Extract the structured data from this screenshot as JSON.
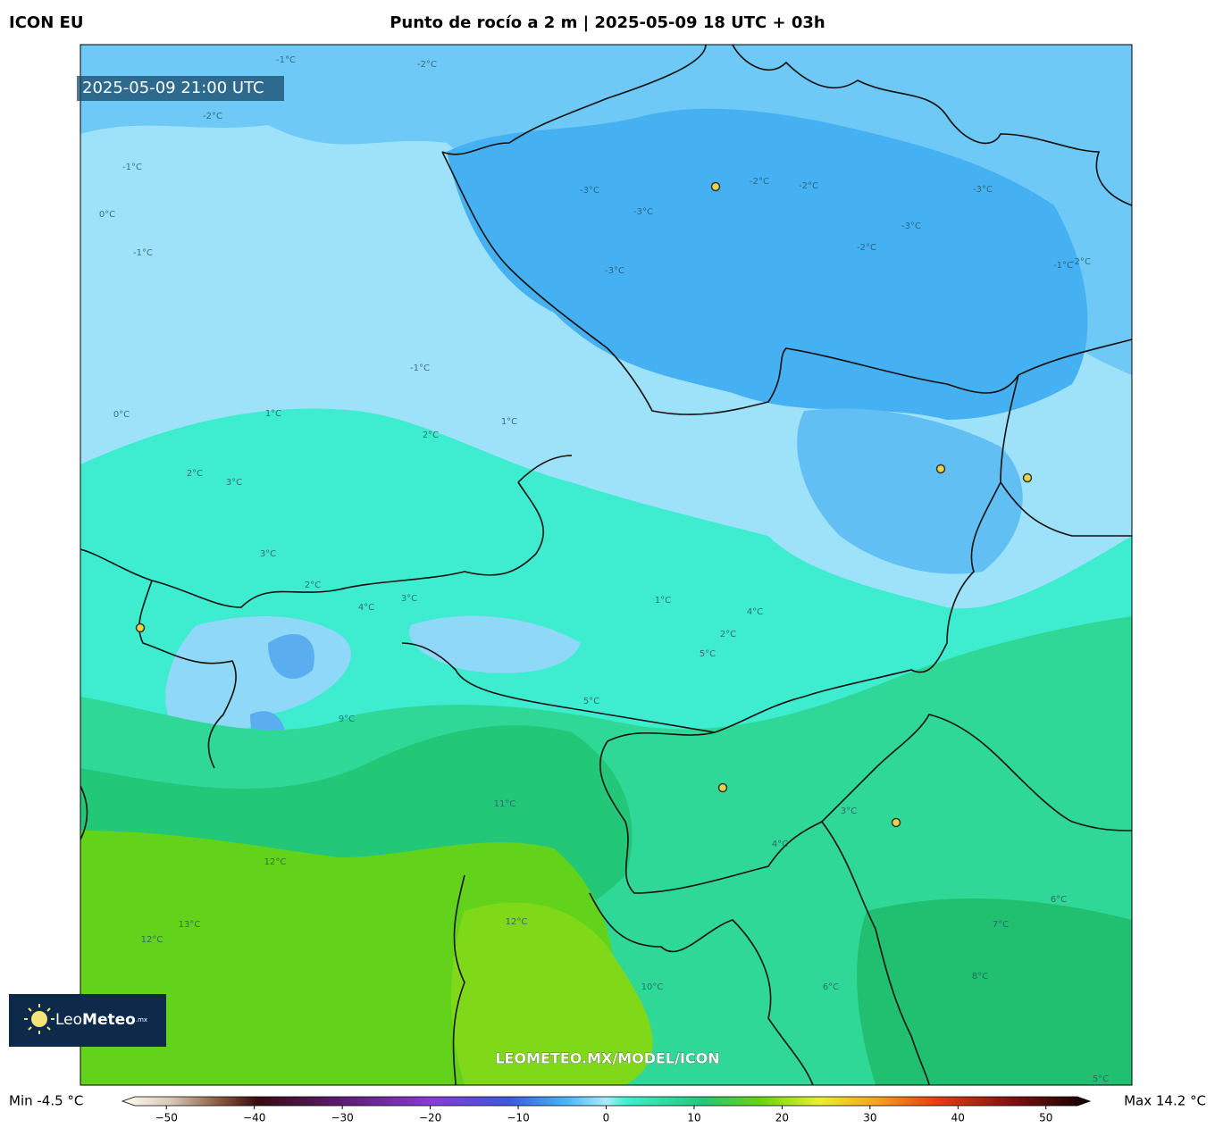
{
  "header": {
    "model": "ICON EU",
    "title": "Punto de rocío a 2 m | 2025-05-09 18 UTC + 03h"
  },
  "map": {
    "valid_time": "2025-05-09 21:00 UTC",
    "watermark": "LEOMETEO.MX/MODEL/ICON",
    "contour_labels": [
      "-1°C",
      "-2°C",
      "-1°C",
      "-2°C",
      "-3°C",
      "-2°C",
      "-2°C",
      "-3°C",
      "-3°C",
      "-1°C",
      "0°C",
      "-1°C",
      "-1°C",
      "-2°C",
      "-3°C",
      "-3°C",
      "-2°C",
      "1°C",
      "1°C",
      "0°C",
      "2°C",
      "2°C",
      "3°C",
      "3°C",
      "2°C",
      "3°C",
      "4°C",
      "1°C",
      "5°C",
      "5°C",
      "4°C",
      "2°C",
      "3°C",
      "4°C",
      "9°C",
      "11°C",
      "12°C",
      "13°C",
      "12°C",
      "12°C",
      "10°C",
      "6°C",
      "7°C",
      "8°C",
      "6°C",
      "5°C"
    ]
  },
  "logo": {
    "name_light": "Leo",
    "name_bold": "Meteo",
    "suffix": ".mx"
  },
  "colorbar": {
    "min_label": "Min -4.5 °C",
    "max_label": "Max 14.2 °C",
    "lim": [
      -55,
      55
    ],
    "ticks": [
      {
        "value": -50,
        "label": "−50"
      },
      {
        "value": -40,
        "label": "−40"
      },
      {
        "value": -30,
        "label": "−30"
      },
      {
        "value": -20,
        "label": "−20"
      },
      {
        "value": -10,
        "label": "−10"
      },
      0,
      10,
      20,
      30,
      40,
      50
    ]
  }
}
